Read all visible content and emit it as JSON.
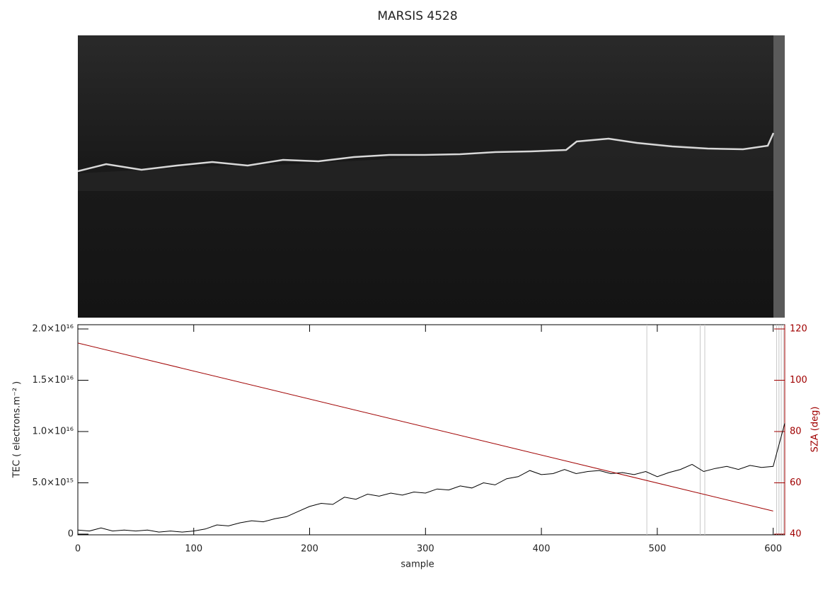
{
  "chart_data": {
    "type": "line",
    "title": "MARSIS 4528",
    "xlabel": "sample",
    "ylabel": "TEC ( electrons.m⁻² )",
    "y2label": "SZA (deg)",
    "xlim": [
      0,
      610
    ],
    "xticks": [
      0,
      100,
      200,
      300,
      400,
      500,
      600
    ],
    "ylim": [
      0,
      2e+16
    ],
    "yticks": [
      0,
      {
        "value": 5000000000000000.0,
        "label": "5.0×10¹⁵"
      },
      {
        "value": 1e+16,
        "label": "1.0×10¹⁶"
      },
      {
        "value": 1.5e+16,
        "label": "1.5×10¹⁶"
      },
      {
        "value": 2e+16,
        "label": "2.0×10¹⁶"
      }
    ],
    "y2lim": [
      40,
      120
    ],
    "y2ticks": [
      40,
      60,
      80,
      100,
      120
    ],
    "y2color": "#a00000",
    "vlines": [
      491,
      537,
      541,
      603,
      605,
      607,
      609
    ],
    "series": [
      {
        "color": "#000000",
        "x": [
          0,
          10,
          20,
          30,
          40,
          50,
          60,
          70,
          80,
          90,
          100,
          110,
          120,
          130,
          140,
          150,
          160,
          170,
          180,
          190,
          200,
          210,
          220,
          230,
          240,
          250,
          260,
          270,
          280,
          290,
          300,
          310,
          320,
          330,
          340,
          350,
          360,
          370,
          380,
          390,
          400,
          410,
          420,
          430,
          440,
          450,
          460,
          470,
          480,
          490,
          500,
          510,
          520,
          530,
          540,
          550,
          560,
          570,
          580,
          590,
          600,
          610
        ],
        "values": [
          400000000000000.0,
          300000000000000.0,
          600000000000000.0,
          300000000000000.0,
          400000000000000.0,
          300000000000000.0,
          400000000000000.0,
          200000000000000.0,
          300000000000000.0,
          200000000000000.0,
          300000000000000.0,
          500000000000000.0,
          900000000000000.0,
          800000000000000.0,
          1100000000000000.0,
          1300000000000000.0,
          1200000000000000.0,
          1500000000000000.0,
          1700000000000000.0,
          2200000000000000.0,
          2700000000000000.0,
          3000000000000000.0,
          2900000000000000.0,
          3600000000000000.0,
          3400000000000000.0,
          3900000000000000.0,
          3700000000000000.0,
          4000000000000000.0,
          3800000000000000.0,
          4100000000000000.0,
          4000000000000000.0,
          4400000000000000.0,
          4300000000000000.0,
          4700000000000000.0,
          4500000000000000.0,
          5000000000000000.0,
          4800000000000000.0,
          5400000000000000.0,
          5600000000000000.0,
          6200000000000000.0,
          5800000000000000.0,
          5900000000000000.0,
          6300000000000000.0,
          5900000000000000.0,
          6100000000000000.0,
          6200000000000000.0,
          5900000000000000.0,
          6000000000000000.0,
          5800000000000000.0,
          6100000000000000.0,
          5600000000000000.0,
          6000000000000000.0,
          6300000000000000.0,
          6800000000000000.0,
          6100000000000000.0,
          6400000000000000.0,
          6600000000000000.0,
          6300000000000000.0,
          6700000000000000.0,
          6500000000000000.0,
          6600000000000000.0,
          1.08e+16
        ]
      },
      {
        "color": "#a00000",
        "axis": "y2",
        "x": [
          0,
          600
        ],
        "values": [
          114.5,
          49
        ]
      }
    ]
  }
}
